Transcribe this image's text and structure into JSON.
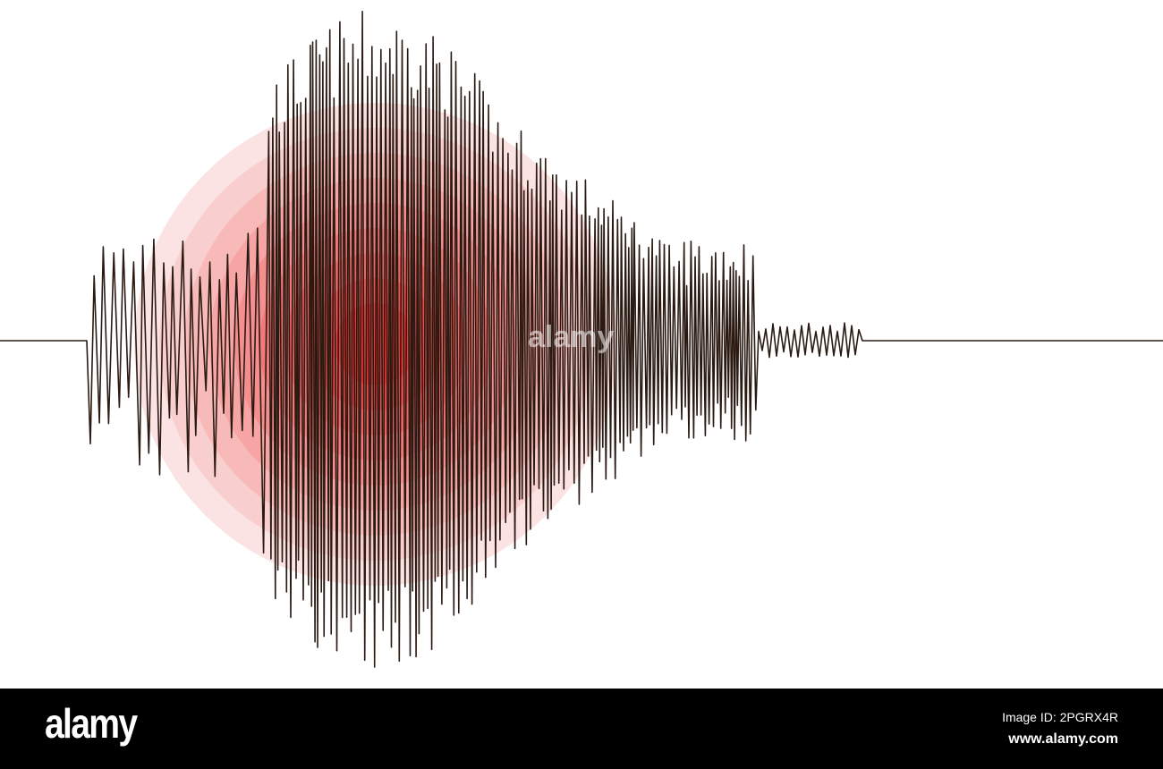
{
  "colors": {
    "wave": "#2a1a12",
    "center": "#ee3a3a",
    "outer": "#fbe3e3",
    "footer": "#000000"
  },
  "watermark": {
    "text": "alamy"
  },
  "footer": {
    "logo": "alamy",
    "image_id": "Image ID: 2PGRX4R",
    "url": "www.alamy.com"
  }
}
